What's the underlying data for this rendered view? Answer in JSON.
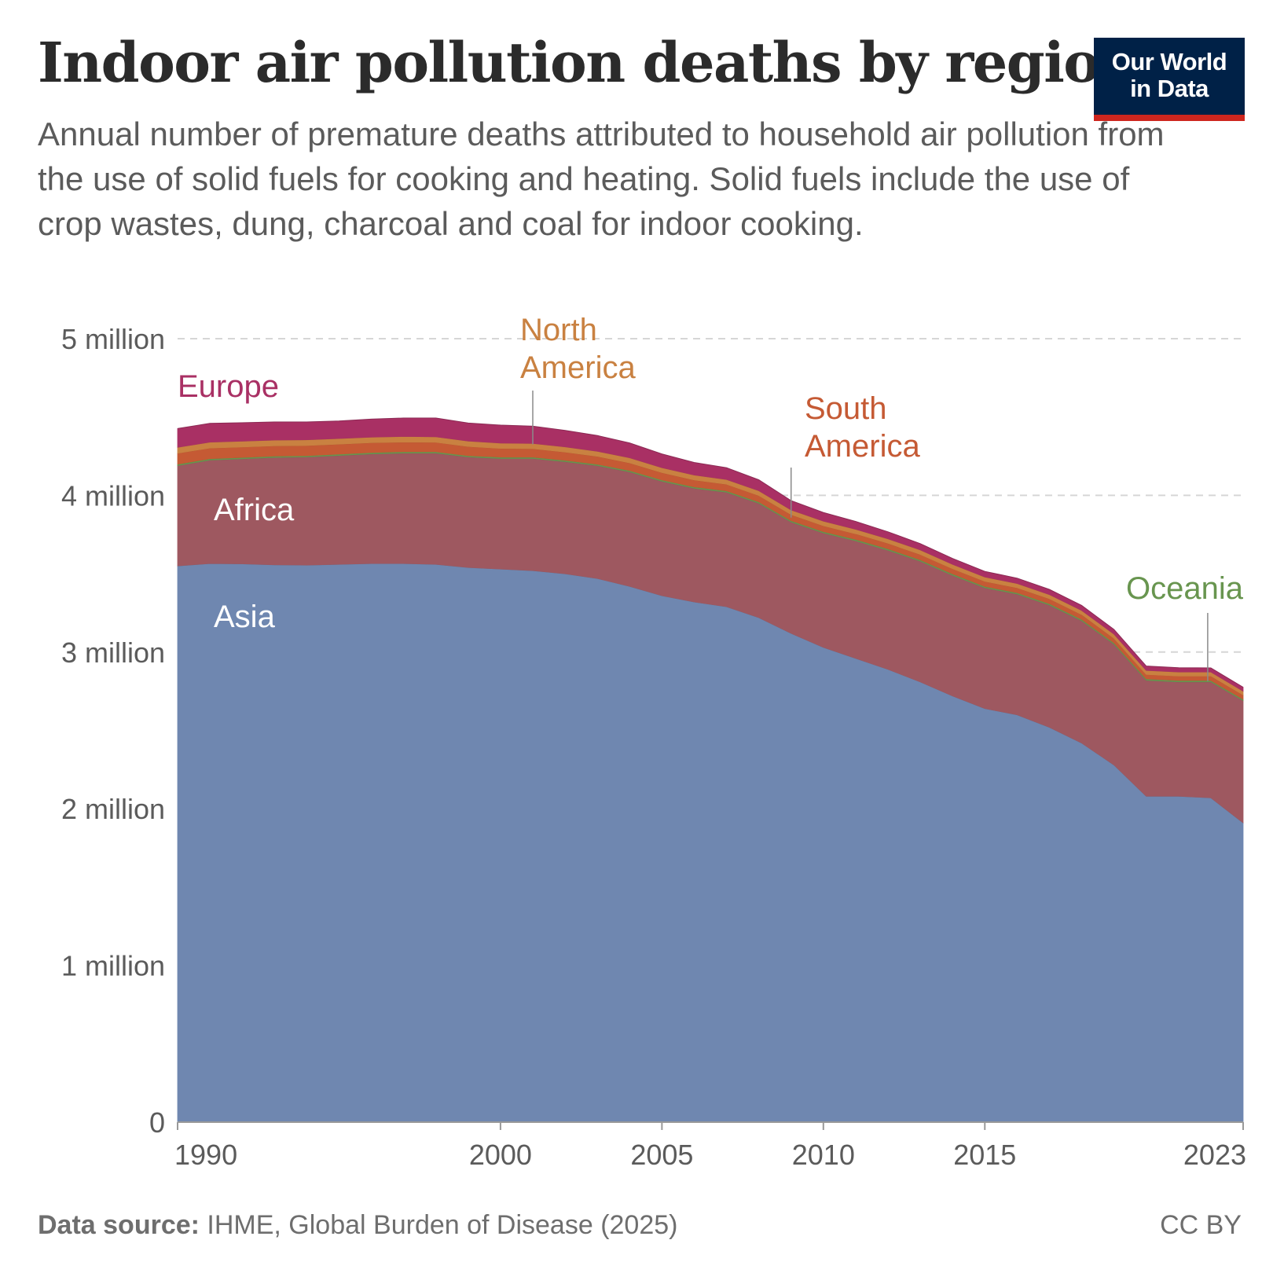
{
  "header": {
    "title": "Indoor air pollution deaths by region",
    "subtitle": "Annual number of premature deaths attributed to household air pollution from the use of solid fuels for cooking and heating. Solid fuels include the use of crop wastes, dung, charcoal and coal for indoor cooking."
  },
  "logo": {
    "line1": "Our World",
    "line2": "in Data",
    "bg_color": "#002147",
    "accent_color": "#ce261e"
  },
  "footer": {
    "source_label": "Data source:",
    "source_text": " IHME, Global Burden of Disease (2025)",
    "license": "CC BY"
  },
  "chart_data": {
    "type": "area",
    "stacked": true,
    "x": [
      1990,
      1991,
      1992,
      1993,
      1994,
      1995,
      1996,
      1997,
      1998,
      1999,
      2000,
      2001,
      2002,
      2003,
      2004,
      2005,
      2006,
      2007,
      2008,
      2009,
      2010,
      2011,
      2012,
      2013,
      2014,
      2015,
      2016,
      2017,
      2018,
      2019,
      2020,
      2021,
      2022,
      2023
    ],
    "x_ticks": [
      1990,
      2000,
      2005,
      2010,
      2015,
      2023
    ],
    "y_ticks": [
      0,
      1000000,
      2000000,
      3000000,
      4000000,
      5000000
    ],
    "y_tick_labels": [
      "0",
      "1 million",
      "2 million",
      "3 million",
      "4 million",
      "5 million"
    ],
    "ylim": [
      0,
      5000000
    ],
    "grid": "horizontal dashed",
    "series": [
      {
        "name": "Asia",
        "color": "#6f87b0",
        "values": [
          3550000,
          3565000,
          3563000,
          3557000,
          3555000,
          3560000,
          3565000,
          3565000,
          3560000,
          3540000,
          3530000,
          3520000,
          3500000,
          3470000,
          3420000,
          3360000,
          3320000,
          3290000,
          3220000,
          3120000,
          3030000,
          2960000,
          2890000,
          2810000,
          2720000,
          2640000,
          2600000,
          2520000,
          2420000,
          2280000,
          2080000,
          2080000,
          2070000,
          1910000
        ]
      },
      {
        "name": "Africa",
        "color": "#9e5860",
        "values": [
          640000,
          660000,
          670000,
          685000,
          690000,
          695000,
          700000,
          705000,
          710000,
          705000,
          705000,
          715000,
          715000,
          720000,
          730000,
          730000,
          725000,
          730000,
          730000,
          710000,
          730000,
          750000,
          760000,
          770000,
          770000,
          770000,
          770000,
          780000,
          780000,
          770000,
          740000,
          730000,
          740000,
          780000
        ]
      },
      {
        "name": "Oceania",
        "color": "#68954f",
        "values": [
          9000,
          9000,
          9000,
          9000,
          9000,
          9000,
          9000,
          9000,
          9000,
          9000,
          9000,
          9000,
          9000,
          9000,
          9000,
          9000,
          9000,
          9000,
          9000,
          9000,
          9000,
          9000,
          9000,
          9000,
          9000,
          9000,
          9000,
          9000,
          9000,
          9000,
          9000,
          9000,
          9000,
          9000
        ]
      },
      {
        "name": "South America",
        "color": "#c55a34",
        "values": [
          70000,
          68000,
          67000,
          65000,
          64000,
          63000,
          62000,
          61000,
          60000,
          58000,
          56000,
          54000,
          52000,
          50000,
          48000,
          46000,
          44000,
          42000,
          40000,
          38000,
          37000,
          36000,
          35000,
          34000,
          33000,
          32000,
          31000,
          31000,
          30000,
          29000,
          28000,
          28000,
          28000,
          27000
        ]
      },
      {
        "name": "North America",
        "color": "#c98141",
        "values": [
          38000,
          38000,
          37000,
          37000,
          37000,
          36000,
          36000,
          36000,
          35000,
          35000,
          34000,
          34000,
          34000,
          33000,
          33000,
          32000,
          32000,
          31000,
          31000,
          30000,
          30000,
          29000,
          29000,
          29000,
          28000,
          28000,
          28000,
          27000,
          27000,
          27000,
          26000,
          26000,
          26000,
          25000
        ]
      },
      {
        "name": "Europe",
        "color": "#a93064",
        "values": [
          120000,
          120000,
          118000,
          116000,
          114000,
          112000,
          115000,
          118000,
          120000,
          115000,
          115000,
          110000,
          105000,
          100000,
          95000,
          88000,
          80000,
          75000,
          70000,
          60000,
          55000,
          50000,
          45000,
          40000,
          38000,
          36000,
          34000,
          33000,
          32000,
          30000,
          28000,
          27000,
          26000,
          25000
        ]
      }
    ],
    "labels": [
      {
        "series": "Asia",
        "lines": [
          "Asia"
        ],
        "color": "#ffffff"
      },
      {
        "series": "Africa",
        "lines": [
          "Africa"
        ],
        "color": "#ffffff"
      },
      {
        "series": "Europe",
        "lines": [
          "Europe"
        ],
        "color": "#a93064"
      },
      {
        "series": "North America",
        "lines": [
          "North",
          "America"
        ],
        "color": "#c98141"
      },
      {
        "series": "South America",
        "lines": [
          "South",
          "America"
        ],
        "color": "#c55a34"
      },
      {
        "series": "Oceania",
        "lines": [
          "Oceania"
        ],
        "color": "#68954f"
      }
    ]
  }
}
